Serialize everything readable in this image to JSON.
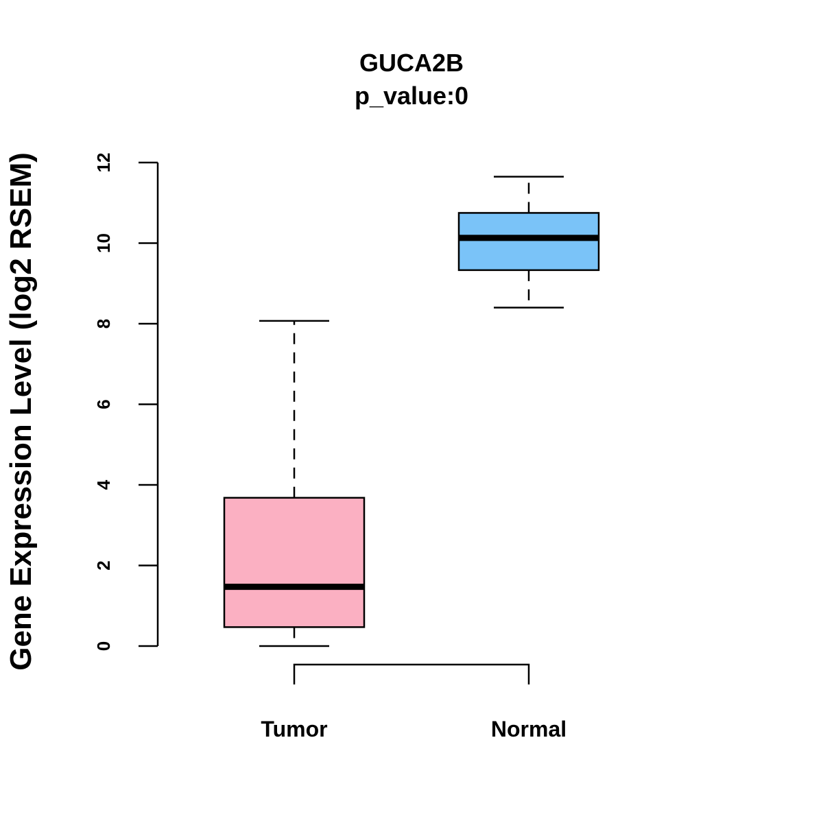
{
  "chart_data": {
    "type": "boxplot",
    "title": "GUCA2B",
    "subtitle": "p_value:0",
    "xlabel": "",
    "ylabel": "Gene Expression Level (log2 RSEM)",
    "ylim": [
      0,
      12
    ],
    "yticks": [
      0,
      2,
      4,
      6,
      8,
      10,
      12
    ],
    "grid": false,
    "categories": [
      "Tumor",
      "Normal"
    ],
    "boxes": [
      {
        "name": "Tumor",
        "color": "#FBB0C2",
        "whisker_low": 0,
        "q1": 0.47,
        "median": 1.47,
        "q3": 3.68,
        "whisker_high": 8.07
      },
      {
        "name": "Normal",
        "color": "#7AC3F8",
        "whisker_low": 8.4,
        "q1": 9.33,
        "median": 10.13,
        "q3": 10.75,
        "whisker_high": 11.65
      }
    ],
    "comparison_bracket": [
      "Tumor",
      "Normal"
    ]
  }
}
